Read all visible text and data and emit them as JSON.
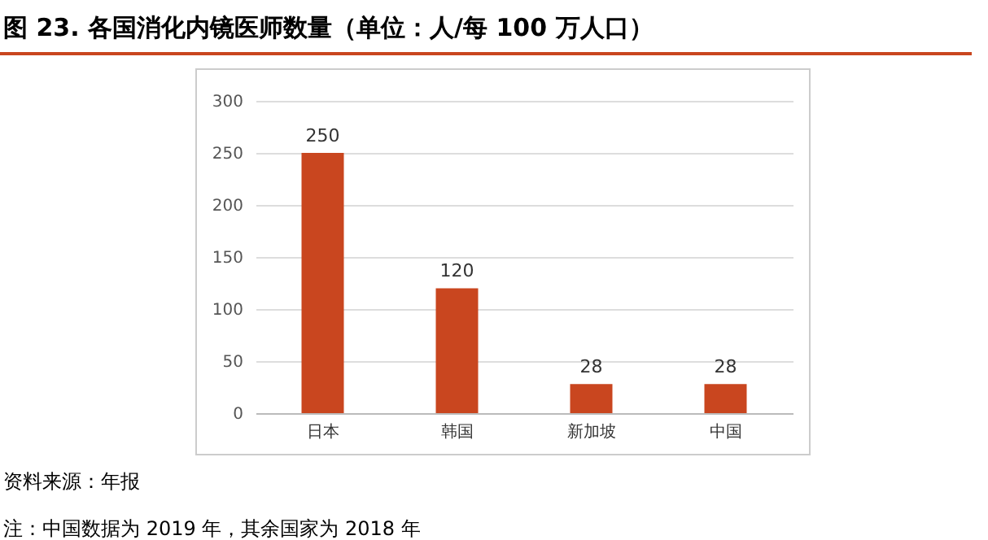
{
  "chart_data": {
    "type": "bar",
    "title": "图 23. 各国消化内镜医师数量（单位：人/每 100 万人口）",
    "categories": [
      "日本",
      "韩国",
      "新加坡",
      "中国"
    ],
    "values": [
      250,
      120,
      28,
      28
    ],
    "color": "#c9461f",
    "ylim": [
      0,
      300
    ],
    "yticks": [
      0,
      50,
      100,
      150,
      200,
      250,
      300
    ],
    "grid": "y",
    "data_labels": true,
    "annotations": [
      "资料来源：年报",
      "注：中国数据为 2019 年，其余国家为 2018 年"
    ]
  }
}
